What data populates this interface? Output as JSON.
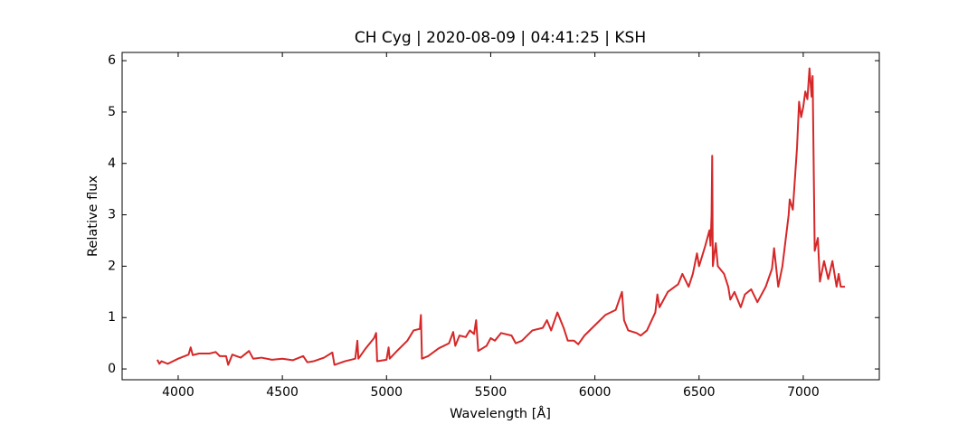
{
  "chart_data": {
    "type": "line",
    "title": "CH Cyg | 2020-08-09 | 04:41:25 | KSH",
    "x_label": "Wavelength [Å]",
    "y_label": "Relative flux",
    "xlim": [
      3731,
      7365
    ],
    "ylim": [
      -0.21,
      6.16
    ],
    "xticks": [
      4000,
      4500,
      5000,
      5500,
      6000,
      6500,
      7000
    ],
    "yticks": [
      0,
      1,
      2,
      3,
      4,
      5,
      6
    ],
    "x": [
      3900,
      3910,
      3920,
      3950,
      4000,
      4050,
      4060,
      4070,
      4100,
      4150,
      4180,
      4200,
      4230,
      4240,
      4260,
      4300,
      4340,
      4360,
      4400,
      4450,
      4500,
      4550,
      4600,
      4620,
      4650,
      4700,
      4740,
      4750,
      4800,
      4850,
      4860,
      4865,
      4900,
      4940,
      4950,
      4955,
      5000,
      5010,
      5015,
      5050,
      5100,
      5130,
      5160,
      5165,
      5170,
      5200,
      5250,
      5300,
      5320,
      5330,
      5350,
      5380,
      5400,
      5420,
      5430,
      5440,
      5480,
      5500,
      5520,
      5550,
      5600,
      5620,
      5650,
      5700,
      5750,
      5770,
      5790,
      5820,
      5850,
      5870,
      5900,
      5920,
      5950,
      6000,
      6050,
      6100,
      6130,
      6140,
      6160,
      6200,
      6220,
      6250,
      6290,
      6300,
      6310,
      6350,
      6400,
      6420,
      6450,
      6470,
      6490,
      6500,
      6530,
      6550,
      6555,
      6560,
      6563,
      6566,
      6580,
      6590,
      6620,
      6640,
      6650,
      6670,
      6690,
      6700,
      6720,
      6750,
      6780,
      6820,
      6850,
      6860,
      6880,
      6900,
      6930,
      6935,
      6950,
      6970,
      6980,
      6990,
      7000,
      7010,
      7020,
      7030,
      7040,
      7045,
      7055,
      7070,
      7080,
      7100,
      7120,
      7140,
      7160,
      7170,
      7180,
      7200
    ],
    "series": [
      {
        "color": "#d62728",
        "values": [
          0.18,
          0.1,
          0.15,
          0.1,
          0.2,
          0.28,
          0.42,
          0.27,
          0.3,
          0.3,
          0.33,
          0.25,
          0.25,
          0.08,
          0.28,
          0.22,
          0.35,
          0.2,
          0.22,
          0.18,
          0.2,
          0.17,
          0.25,
          0.13,
          0.15,
          0.22,
          0.32,
          0.08,
          0.15,
          0.2,
          0.55,
          0.2,
          0.4,
          0.6,
          0.7,
          0.15,
          0.18,
          0.42,
          0.2,
          0.35,
          0.55,
          0.75,
          0.78,
          1.05,
          0.2,
          0.25,
          0.4,
          0.5,
          0.72,
          0.45,
          0.65,
          0.62,
          0.75,
          0.68,
          0.95,
          0.35,
          0.45,
          0.6,
          0.55,
          0.7,
          0.65,
          0.5,
          0.55,
          0.75,
          0.8,
          0.95,
          0.75,
          1.1,
          0.8,
          0.55,
          0.55,
          0.48,
          0.65,
          0.85,
          1.05,
          1.15,
          1.5,
          0.95,
          0.75,
          0.7,
          0.65,
          0.75,
          1.1,
          1.45,
          1.2,
          1.5,
          1.65,
          1.85,
          1.6,
          1.85,
          2.25,
          2.0,
          2.4,
          2.7,
          2.4,
          3.0,
          4.15,
          2.0,
          2.45,
          2.0,
          1.85,
          1.6,
          1.35,
          1.5,
          1.3,
          1.2,
          1.45,
          1.55,
          1.3,
          1.6,
          1.95,
          2.35,
          1.6,
          2.0,
          3.0,
          3.3,
          3.1,
          4.3,
          5.2,
          4.9,
          5.1,
          5.4,
          5.25,
          5.85,
          5.3,
          5.7,
          2.3,
          2.55,
          1.7,
          2.1,
          1.75,
          2.1,
          1.6,
          1.85,
          1.6,
          1.6
        ]
      }
    ]
  }
}
